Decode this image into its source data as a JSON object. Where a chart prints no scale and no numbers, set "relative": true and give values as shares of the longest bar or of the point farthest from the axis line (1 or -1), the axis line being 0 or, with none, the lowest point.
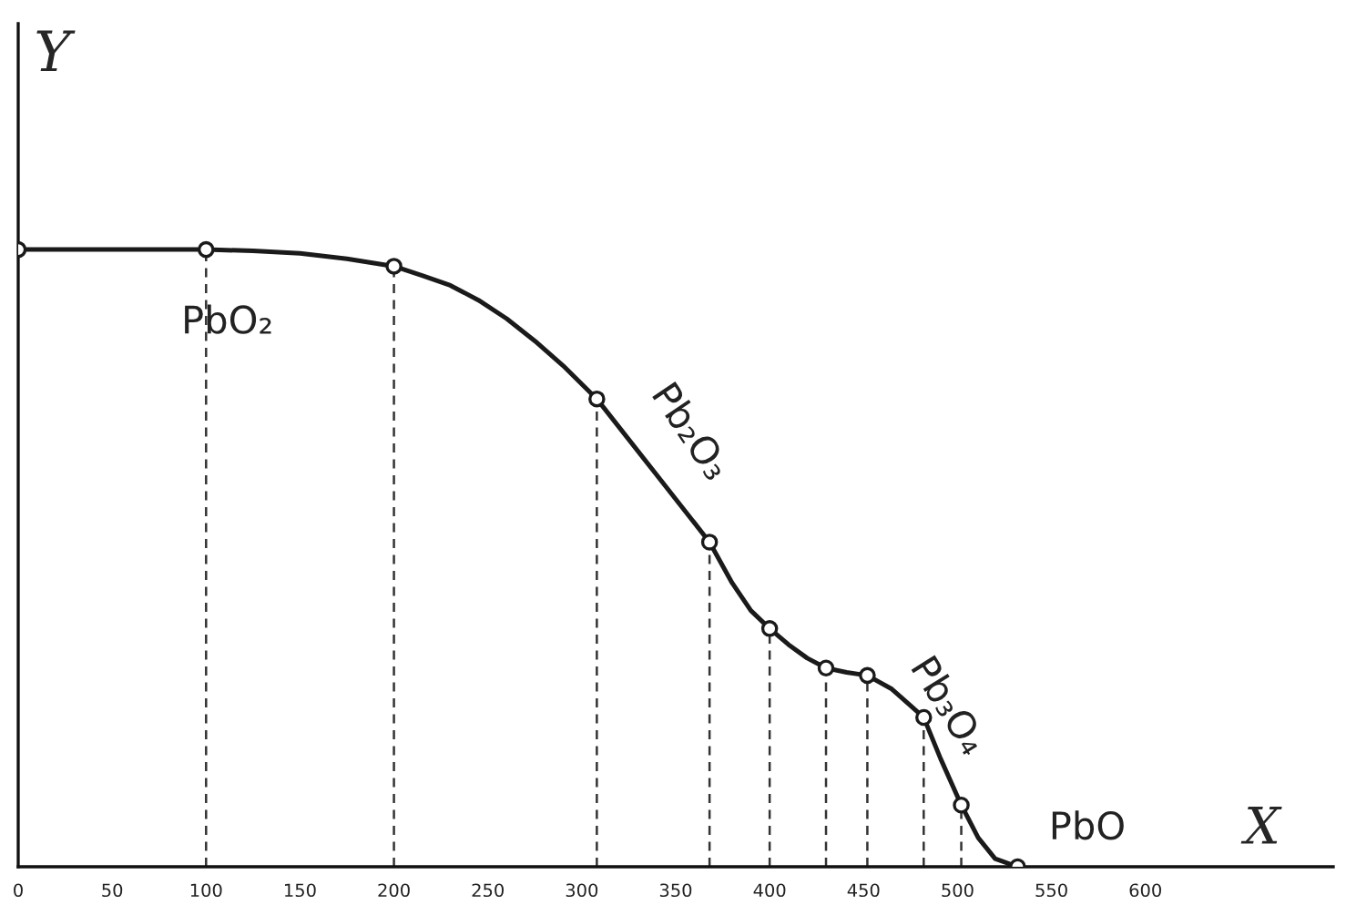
{
  "chart_data": {
    "type": "line",
    "xlabel": "X",
    "ylabel": "Y",
    "relative": true,
    "series": [
      {
        "marker": "none",
        "color": "#1a1a1a",
        "x": [
          0,
          50,
          100,
          125,
          150,
          175,
          200,
          215,
          230,
          245,
          260,
          275,
          290,
          308,
          338,
          368,
          380,
          390,
          400,
          410,
          420,
          430,
          441,
          452,
          465,
          482,
          491,
          502,
          511,
          520,
          532
        ],
        "values": [
          1,
          1,
          1,
          0.998,
          0.994,
          0.985,
          0.973,
          0.958,
          0.942,
          0.918,
          0.888,
          0.852,
          0.812,
          0.758,
          0.642,
          0.526,
          0.46,
          0.415,
          0.386,
          0.36,
          0.338,
          0.322,
          0.315,
          0.31,
          0.288,
          0.242,
          0.175,
          0.1,
          0.047,
          0.013,
          0
        ]
      },
      {
        "type": "scatter",
        "color": "#1a1a1a",
        "x": [
          0,
          100,
          200,
          308,
          368,
          400,
          430,
          452,
          482,
          502,
          532
        ],
        "values": [
          1,
          1,
          0.973,
          0.758,
          0.526,
          0.386,
          0.322,
          0.31,
          0.242,
          0.1,
          0
        ]
      }
    ],
    "xlim": [
      0,
      700
    ],
    "xticks": [
      0,
      50,
      100,
      150,
      200,
      250,
      300,
      350,
      400,
      450,
      500,
      550,
      600
    ],
    "marker": "circle",
    "line_style": "solid",
    "tick_labels": "x",
    "annotations": [
      "PbO₂",
      "Pb₂O₃",
      "Pb₃O₄",
      "PbO"
    ],
    "ref_lines": [
      {
        "axis": "x",
        "value": 100,
        "line_style": "dashed",
        "color": "#333333"
      },
      {
        "axis": "x",
        "value": 200,
        "line_style": "dashed",
        "color": "#333333"
      },
      {
        "axis": "x",
        "value": 308,
        "line_style": "dashed",
        "color": "#333333"
      },
      {
        "axis": "x",
        "value": 368,
        "line_style": "dashed",
        "color": "#333333"
      },
      {
        "axis": "x",
        "value": 400,
        "line_style": "dashed",
        "color": "#333333"
      },
      {
        "axis": "x",
        "value": 430,
        "line_style": "dashed",
        "color": "#333333"
      },
      {
        "axis": "x",
        "value": 452,
        "line_style": "dashed",
        "color": "#333333"
      },
      {
        "axis": "x",
        "value": 482,
        "line_style": "dashed",
        "color": "#333333"
      },
      {
        "axis": "x",
        "value": 502,
        "line_style": "dashed",
        "color": "#333333"
      }
    ]
  }
}
